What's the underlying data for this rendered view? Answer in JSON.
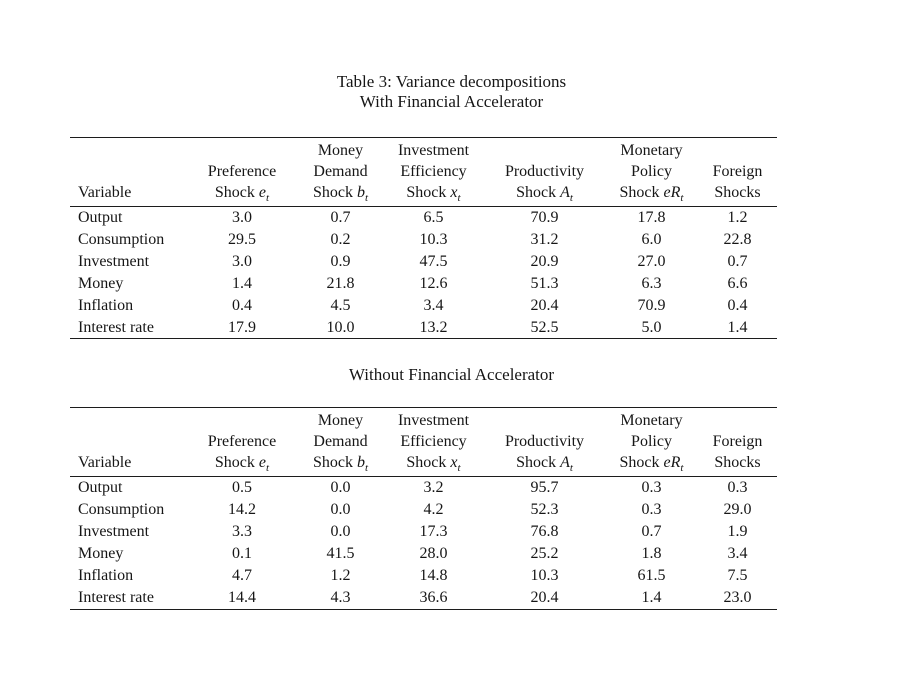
{
  "page": {
    "caption_line1": "Table 3: Variance decompositions",
    "caption_line2": "With Financial Accelerator",
    "section2_title": "Without Financial Accelerator"
  },
  "columns": [
    {
      "header_lines": [
        "",
        ""
      ],
      "label": "Variable",
      "sym": "",
      "sub": ""
    },
    {
      "header_lines": [
        "",
        "Preference"
      ],
      "label": "Shock",
      "sym": "e",
      "sub": "t"
    },
    {
      "header_lines": [
        "Money",
        "Demand"
      ],
      "label": "Shock",
      "sym": "b",
      "sub": "t"
    },
    {
      "header_lines": [
        "Investment",
        "Efficiency"
      ],
      "label": "Shock",
      "sym": "x",
      "sub": "t"
    },
    {
      "header_lines": [
        "",
        "Productivity"
      ],
      "label": "Shock",
      "sym": "A",
      "sub": "t"
    },
    {
      "header_lines": [
        "Monetary",
        "Policy"
      ],
      "label": "Shock",
      "sym": "eR",
      "sub": "t"
    },
    {
      "header_lines": [
        "",
        "Foreign"
      ],
      "label": "Shocks",
      "sym": "",
      "sub": ""
    }
  ],
  "tables": [
    {
      "name": "with-financial-accelerator",
      "rows": [
        {
          "variable": "Output",
          "values": [
            "3.0",
            "0.7",
            "6.5",
            "70.9",
            "17.8",
            "1.2"
          ]
        },
        {
          "variable": "Consumption",
          "values": [
            "29.5",
            "0.2",
            "10.3",
            "31.2",
            "6.0",
            "22.8"
          ]
        },
        {
          "variable": "Investment",
          "values": [
            "3.0",
            "0.9",
            "47.5",
            "20.9",
            "27.0",
            "0.7"
          ]
        },
        {
          "variable": "Money",
          "values": [
            "1.4",
            "21.8",
            "12.6",
            "51.3",
            "6.3",
            "6.6"
          ]
        },
        {
          "variable": "Inflation",
          "values": [
            "0.4",
            "4.5",
            "3.4",
            "20.4",
            "70.9",
            "0.4"
          ]
        },
        {
          "variable": "Interest rate",
          "values": [
            "17.9",
            "10.0",
            "13.2",
            "52.5",
            "5.0",
            "1.4"
          ]
        }
      ]
    },
    {
      "name": "without-financial-accelerator",
      "rows": [
        {
          "variable": "Output",
          "values": [
            "0.5",
            "0.0",
            "3.2",
            "95.7",
            "0.3",
            "0.3"
          ]
        },
        {
          "variable": "Consumption",
          "values": [
            "14.2",
            "0.0",
            "4.2",
            "52.3",
            "0.3",
            "29.0"
          ]
        },
        {
          "variable": "Investment",
          "values": [
            "3.3",
            "0.0",
            "17.3",
            "76.8",
            "0.7",
            "1.9"
          ]
        },
        {
          "variable": "Money",
          "values": [
            "0.1",
            "41.5",
            "28.0",
            "25.2",
            "1.8",
            "3.4"
          ]
        },
        {
          "variable": "Inflation",
          "values": [
            "4.7",
            "1.2",
            "14.8",
            "10.3",
            "61.5",
            "7.5"
          ]
        },
        {
          "variable": "Interest rate",
          "values": [
            "14.4",
            "4.3",
            "36.6",
            "20.4",
            "1.4",
            "23.0"
          ]
        }
      ]
    }
  ]
}
